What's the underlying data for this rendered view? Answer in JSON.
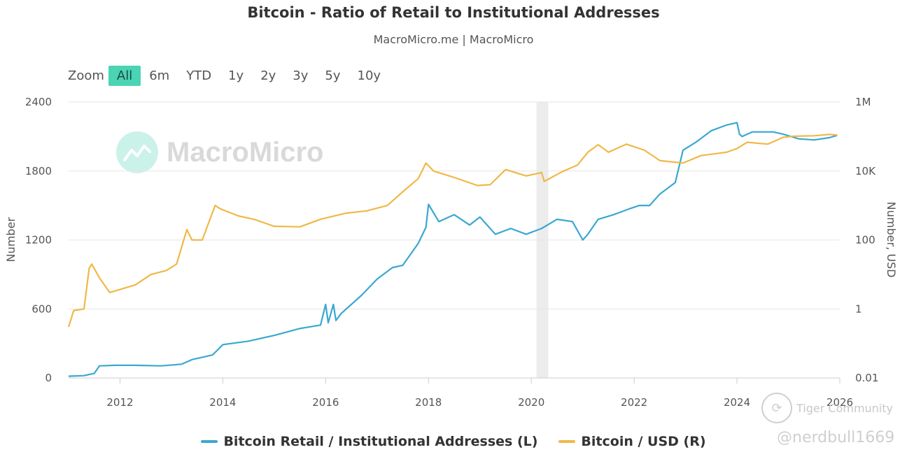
{
  "header": {
    "title": "Bitcoin - Ratio of Retail to Institutional Addresses",
    "subtitle": "MacroMicro.me | MacroMicro"
  },
  "zoom": {
    "label": "Zoom",
    "buttons": [
      "All",
      "6m",
      "YTD",
      "1y",
      "2y",
      "3y",
      "5y",
      "10y"
    ],
    "selected": "All"
  },
  "watermark": {
    "text": "MacroMicro"
  },
  "overlay": {
    "community": "Tiger Community",
    "handle": "@nerdbull1669"
  },
  "colors": {
    "retail_series": "#3aa8d0",
    "price_series": "#f0b848",
    "recession_band": "#ececec",
    "accent": "#4ad4b4"
  },
  "chart_data": {
    "type": "line",
    "title": "Bitcoin - Ratio of Retail to Institutional Addresses",
    "subtitle": "MacroMicro.me | MacroMicro",
    "x_ticks": [
      "2012",
      "2014",
      "2016",
      "2018",
      "2020",
      "2022",
      "2024",
      "2026"
    ],
    "xlim": [
      2011.0,
      2026.0
    ],
    "left_axis": {
      "label": "Number",
      "ticks": [
        "0",
        "600",
        "1200",
        "1800",
        "2400"
      ],
      "ylim": [
        0,
        2400
      ]
    },
    "right_axis": {
      "label": "Number, USD",
      "scale": "log",
      "ticks": [
        "0.01",
        "1",
        "100",
        "10K",
        "1M"
      ],
      "ylim": [
        0.01,
        1000000
      ]
    },
    "shaded_band": {
      "x_start": 2020.1,
      "x_end": 2020.33
    },
    "legend_position": "bottom-center",
    "series": [
      {
        "name": "Bitcoin Retail / Institutional Addresses (L)",
        "axis": "left",
        "x": [
          2011.0,
          2011.3,
          2011.5,
          2011.6,
          2011.9,
          2012.3,
          2012.8,
          2013.2,
          2013.4,
          2013.8,
          2014.0,
          2014.5,
          2015.0,
          2015.5,
          2015.9,
          2016.0,
          2016.05,
          2016.15,
          2016.2,
          2016.3,
          2016.7,
          2017.0,
          2017.3,
          2017.5,
          2017.8,
          2017.95,
          2018.0,
          2018.2,
          2018.5,
          2018.8,
          2019.0,
          2019.3,
          2019.6,
          2019.9,
          2020.2,
          2020.5,
          2020.8,
          2021.0,
          2021.1,
          2021.3,
          2021.6,
          2021.9,
          2022.1,
          2022.3,
          2022.5,
          2022.8,
          2022.95,
          2023.2,
          2023.5,
          2023.8,
          2024.0,
          2024.05,
          2024.1,
          2024.3,
          2024.7,
          2024.9,
          2025.2,
          2025.5,
          2025.8,
          2025.95
        ],
        "values": [
          15,
          20,
          40,
          105,
          110,
          110,
          105,
          120,
          160,
          200,
          290,
          320,
          370,
          430,
          460,
          640,
          480,
          640,
          500,
          560,
          720,
          860,
          960,
          980,
          1170,
          1310,
          1510,
          1360,
          1420,
          1330,
          1400,
          1250,
          1300,
          1250,
          1300,
          1380,
          1360,
          1200,
          1250,
          1380,
          1420,
          1470,
          1500,
          1500,
          1600,
          1700,
          1980,
          2050,
          2150,
          2200,
          2220,
          2120,
          2100,
          2140,
          2140,
          2120,
          2080,
          2070,
          2090,
          2110
        ]
      },
      {
        "name": "Bitcoin / USD (R)",
        "axis": "right",
        "x": [
          2011.0,
          2011.1,
          2011.3,
          2011.4,
          2011.45,
          2011.6,
          2011.8,
          2011.95,
          2012.3,
          2012.6,
          2012.9,
          2013.1,
          2013.3,
          2013.4,
          2013.6,
          2013.85,
          2013.95,
          2014.3,
          2014.6,
          2015.0,
          2015.5,
          2015.9,
          2016.4,
          2016.8,
          2017.2,
          2017.5,
          2017.8,
          2017.95,
          2018.1,
          2018.5,
          2018.95,
          2019.2,
          2019.5,
          2019.9,
          2020.2,
          2020.25,
          2020.6,
          2020.9,
          2021.1,
          2021.3,
          2021.5,
          2021.85,
          2022.2,
          2022.5,
          2022.95,
          2023.3,
          2023.8,
          2024.0,
          2024.2,
          2024.6,
          2024.9,
          2025.1,
          2025.5,
          2025.8,
          2025.95
        ],
        "values": [
          0.3,
          0.9,
          1.0,
          15.0,
          20.0,
          8.0,
          3.0,
          3.5,
          5.0,
          10.0,
          13.0,
          20.0,
          200.0,
          100.0,
          100.0,
          1000.0,
          800.0,
          500.0,
          400.0,
          250.0,
          240.0,
          400.0,
          600.0,
          700.0,
          1000.0,
          2500.0,
          6000.0,
          17000.0,
          10000.0,
          6500.0,
          3800.0,
          4000.0,
          11000.0,
          7200.0,
          9000.0,
          5000.0,
          9500.0,
          15000.0,
          35000.0,
          58000.0,
          35000.0,
          60000.0,
          40000.0,
          20000.0,
          17000.0,
          28000.0,
          35000.0,
          45000.0,
          68000.0,
          60000.0,
          95000.0,
          102000.0,
          105000.0,
          115000.0,
          110000.0
        ]
      }
    ]
  }
}
